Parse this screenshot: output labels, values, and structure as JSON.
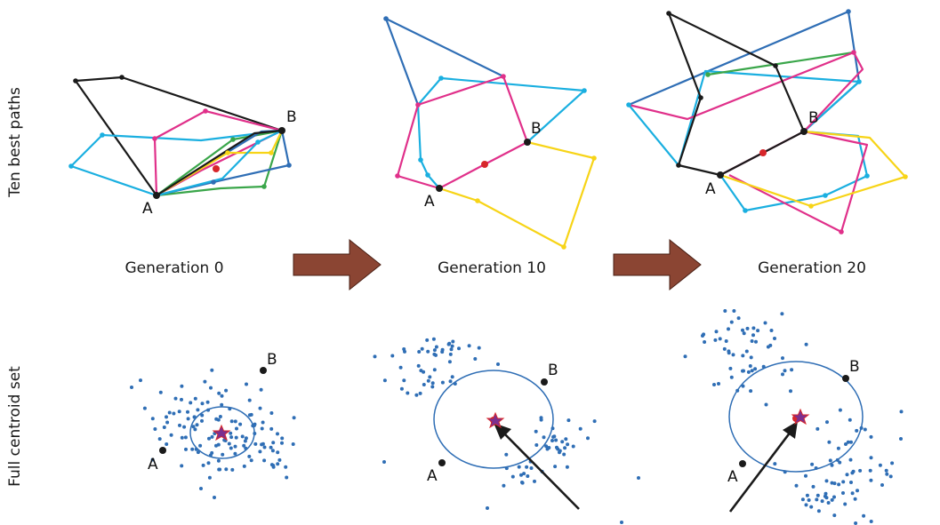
{
  "row_labels": {
    "top": "Ten best paths",
    "bottom": "Full centroid set"
  },
  "generations": [
    {
      "label": "Generation 0"
    },
    {
      "label": "Generation 10"
    },
    {
      "label": "Generation 20"
    }
  ],
  "point_labels": {
    "a": "A",
    "b": "B"
  },
  "colors": {
    "black": "#1a1a1a",
    "cyan": "#1aafe0",
    "magenta": "#e0308a",
    "green": "#3aa64a",
    "blue": "#2f6eb5",
    "yellow": "#f7d417",
    "red": "#d7262b",
    "arrow": "#8b4533",
    "dot": "#2f6eb5",
    "star": "#7b2f8f"
  }
}
